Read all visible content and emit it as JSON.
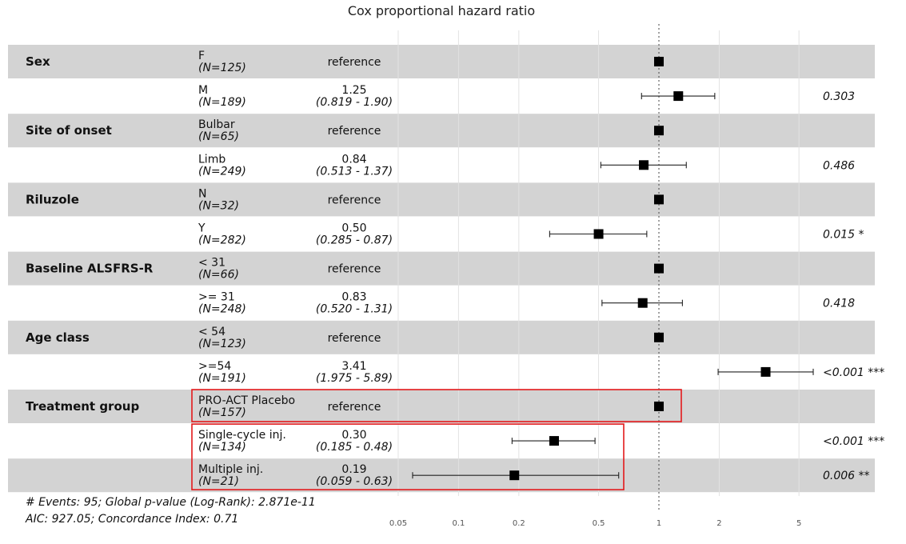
{
  "chart_data": {
    "type": "forest",
    "title": "Cox proportional hazard ratio",
    "x_scale": "log",
    "xlim": [
      0.02,
      10
    ],
    "x_ticks": [
      0.05,
      0.1,
      0.2,
      0.5,
      1,
      2,
      5
    ],
    "x_tick_labels": [
      "0.05",
      "0.1",
      "0.2",
      "0.5",
      "1",
      "2",
      "5"
    ],
    "reference_line": 1,
    "rows": [
      {
        "group": "Sex",
        "level": "F",
        "n": "(N=125)",
        "estimate": "reference",
        "ci": "",
        "p": "",
        "hr": 1,
        "lo": null,
        "hi": null
      },
      {
        "group": "",
        "level": "M",
        "n": "(N=189)",
        "estimate": "1.25",
        "ci": "(0.819 - 1.90)",
        "p": "0.303",
        "hr": 1.25,
        "lo": 0.819,
        "hi": 1.9
      },
      {
        "group": "Site of onset",
        "level": "Bulbar",
        "n": "(N=65)",
        "estimate": "reference",
        "ci": "",
        "p": "",
        "hr": 1,
        "lo": null,
        "hi": null
      },
      {
        "group": "",
        "level": "Limb",
        "n": "(N=249)",
        "estimate": "0.84",
        "ci": "(0.513 - 1.37)",
        "p": "0.486",
        "hr": 0.84,
        "lo": 0.513,
        "hi": 1.37
      },
      {
        "group": "Riluzole",
        "level": "N",
        "n": "(N=32)",
        "estimate": "reference",
        "ci": "",
        "p": "",
        "hr": 1,
        "lo": null,
        "hi": null
      },
      {
        "group": "",
        "level": "Y",
        "n": "(N=282)",
        "estimate": "0.50",
        "ci": "(0.285 - 0.87)",
        "p": "0.015 *",
        "hr": 0.5,
        "lo": 0.285,
        "hi": 0.87
      },
      {
        "group": "Baseline ALSFRS-R",
        "level": "< 31",
        "n": "(N=66)",
        "estimate": "reference",
        "ci": "",
        "p": "",
        "hr": 1,
        "lo": null,
        "hi": null
      },
      {
        "group": "",
        "level": ">= 31",
        "n": "(N=248)",
        "estimate": "0.83",
        "ci": "(0.520 - 1.31)",
        "p": "0.418",
        "hr": 0.83,
        "lo": 0.52,
        "hi": 1.31
      },
      {
        "group": "Age class",
        "level": "< 54",
        "n": "(N=123)",
        "estimate": "reference",
        "ci": "",
        "p": "",
        "hr": 1,
        "lo": null,
        "hi": null
      },
      {
        "group": "",
        "level": ">=54",
        "n": "(N=191)",
        "estimate": "3.41",
        "ci": "(1.975 - 5.89)",
        "p": "<0.001 ***",
        "hr": 3.41,
        "lo": 1.975,
        "hi": 5.89
      },
      {
        "group": "Treatment group",
        "level": "PRO-ACT Placebo",
        "n": "(N=157)",
        "estimate": "reference",
        "ci": "",
        "p": "",
        "hr": 1,
        "lo": null,
        "hi": null
      },
      {
        "group": "",
        "level": "Single-cycle inj.",
        "n": "(N=134)",
        "estimate": "0.30",
        "ci": "(0.185 - 0.48)",
        "p": "<0.001 ***",
        "hr": 0.3,
        "lo": 0.185,
        "hi": 0.48
      },
      {
        "group": "",
        "level": "Multiple inj.",
        "n": "(N=21)",
        "estimate": "0.19",
        "ci": "(0.059 - 0.63)",
        "p": "0.006 **",
        "hr": 0.19,
        "lo": 0.059,
        "hi": 0.63
      }
    ],
    "footer": [
      "# Events: 95; Global p-value (Log-Rank): 2.871e-11",
      "AIC: 927.05; Concordance Index: 0.71"
    ],
    "highlight_color": "#e31a1c",
    "row_band_color": "#d3d3d3"
  }
}
